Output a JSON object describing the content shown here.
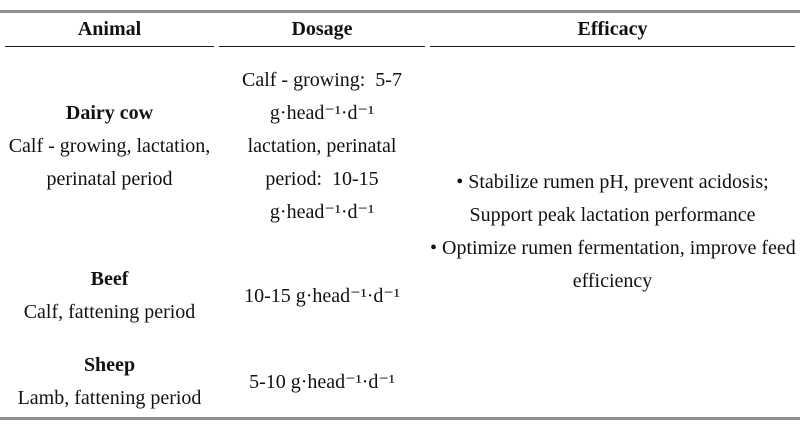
{
  "colors": {
    "rule_gray": "#8f8f8f",
    "header_underline": "#1a1a1a",
    "text": "#111111"
  },
  "table": {
    "columns": [
      {
        "label": "Animal"
      },
      {
        "label": "Dosage"
      },
      {
        "label": "Efficacy"
      }
    ],
    "rows": [
      {
        "animal_name": "Dairy cow",
        "animal_detail_lines": [
          "Calf - growing, lactation,",
          "perinatal period"
        ],
        "dosage_lines": [
          "Calf - growing:  5-7",
          "g·head⁻¹·d⁻¹",
          "lactation, perinatal",
          "period:  10-15",
          "g·head⁻¹·d⁻¹"
        ]
      },
      {
        "animal_name": "Beef",
        "animal_detail_lines": [
          "Calf, fattening period"
        ],
        "dosage_lines": [
          "10-15 g·head⁻¹·d⁻¹"
        ]
      },
      {
        "animal_name": "Sheep",
        "animal_detail_lines": [
          "Lamb, fattening period"
        ],
        "dosage_lines": [
          "5-10 g·head⁻¹·d⁻¹"
        ]
      }
    ],
    "efficacy_lines": [
      "• Stabilize rumen pH, prevent acidosis;",
      "Support peak lactation performance",
      "• Optimize rumen fermentation, improve feed",
      "efficiency"
    ]
  }
}
